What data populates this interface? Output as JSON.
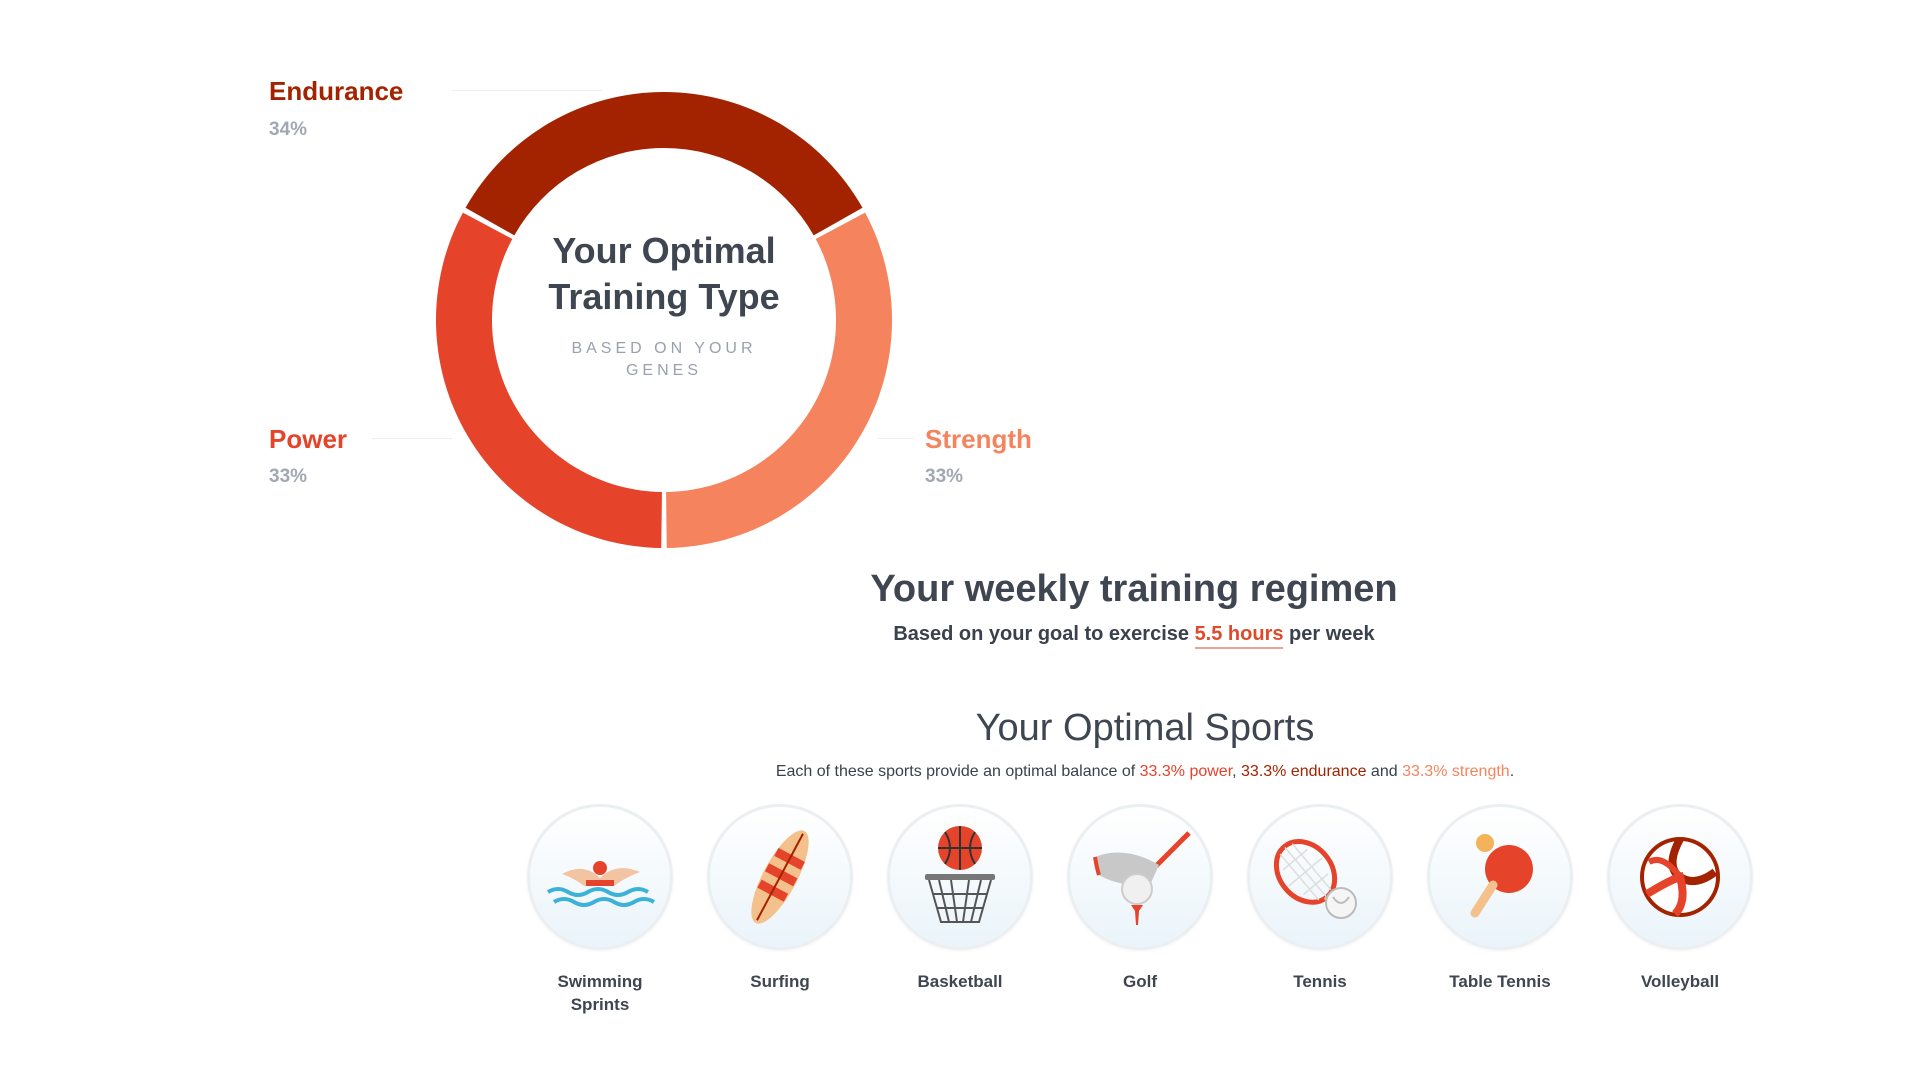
{
  "donut": {
    "title": "Your Optimal Training Type",
    "subtitle": "BASED ON YOUR GENES",
    "segments": [
      {
        "key": "endurance",
        "label": "Endurance",
        "percent_label": "34%",
        "value": 34,
        "color": "#a32200"
      },
      {
        "key": "strength",
        "label": "Strength",
        "percent_label": "33%",
        "value": 33,
        "color": "#f5845e"
      },
      {
        "key": "power",
        "label": "Power",
        "percent_label": "33%",
        "value": 33,
        "color": "#e5432a"
      }
    ]
  },
  "regimen": {
    "title": "Your weekly training regimen",
    "sub_prefix": "Based on your goal to exercise ",
    "hours": "5.5 hours",
    "sub_suffix": " per week"
  },
  "sports": {
    "title": "Your Optimal Sports",
    "sub_prefix": "Each of these sports provide an optimal balance of ",
    "power": "33.3% power",
    "comma": ", ",
    "endurance": "33.3% endurance",
    "and": " and ",
    "strength": "33.3% strength",
    "period": ".",
    "items": [
      {
        "label": "Swimming\nSprints",
        "icon": "swimmer-icon"
      },
      {
        "label": "Surfing",
        "icon": "surfboard-icon"
      },
      {
        "label": "Basketball",
        "icon": "basketball-hoop-icon"
      },
      {
        "label": "Golf",
        "icon": "golf-club-icon"
      },
      {
        "label": "Tennis",
        "icon": "tennis-racket-icon"
      },
      {
        "label": "Table Tennis",
        "icon": "ping-pong-paddle-icon"
      },
      {
        "label": "Volleyball",
        "icon": "volleyball-icon"
      }
    ]
  }
}
